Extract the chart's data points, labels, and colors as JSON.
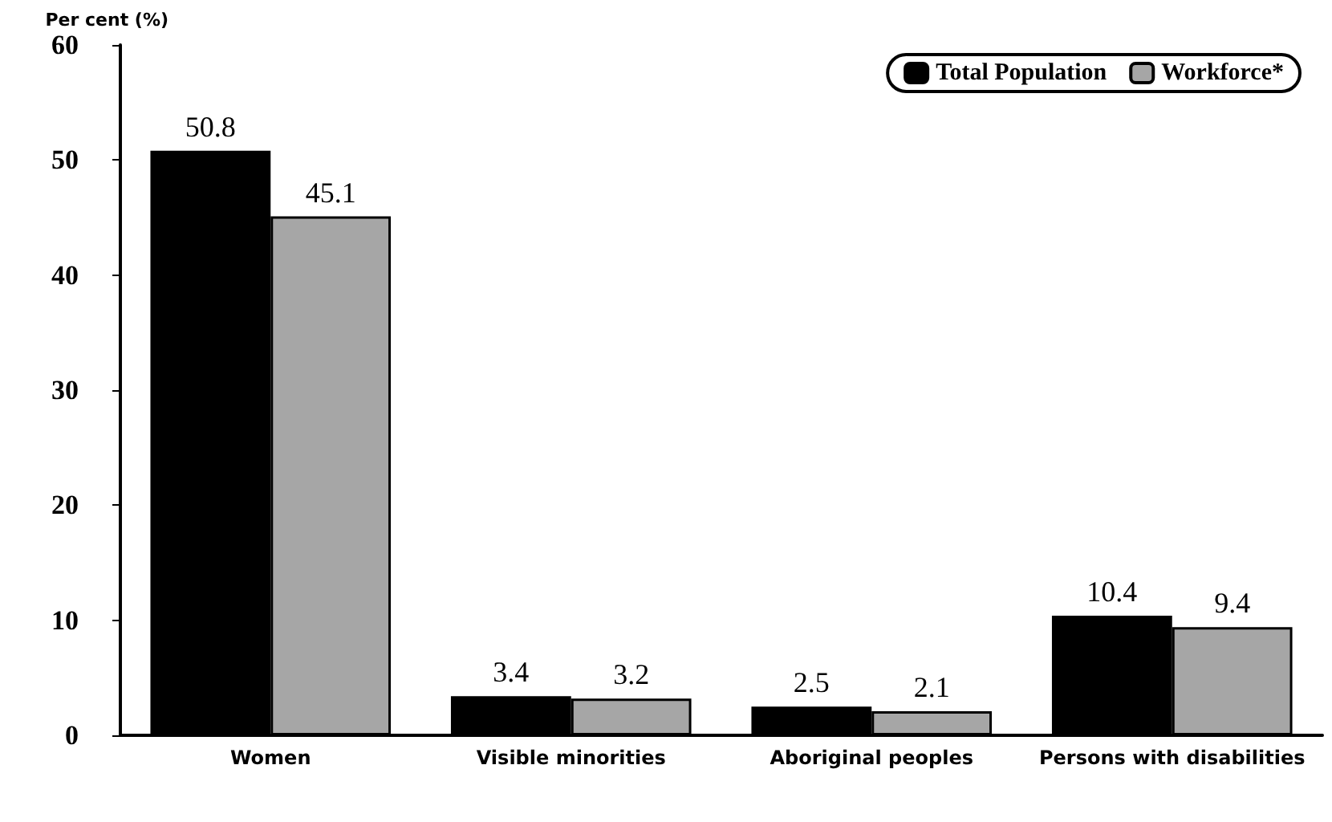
{
  "chart_data": {
    "type": "bar",
    "ylabel": "Per cent (%)",
    "categories": [
      "Women",
      "Visible minorities",
      "Aboriginal peoples",
      "Persons with disabilities"
    ],
    "series": [
      {
        "name": "Total Population",
        "color": "#000000",
        "values": [
          50.8,
          3.4,
          2.5,
          10.4
        ]
      },
      {
        "name": "Workforce*",
        "color": "#a6a6a6",
        "values": [
          45.1,
          3.2,
          2.1,
          9.4
        ]
      }
    ],
    "ylim": [
      0,
      60
    ],
    "yticks": [
      0,
      10,
      20,
      30,
      40,
      50,
      60
    ],
    "grid": false,
    "legend": "top right",
    "data_labels": true
  }
}
